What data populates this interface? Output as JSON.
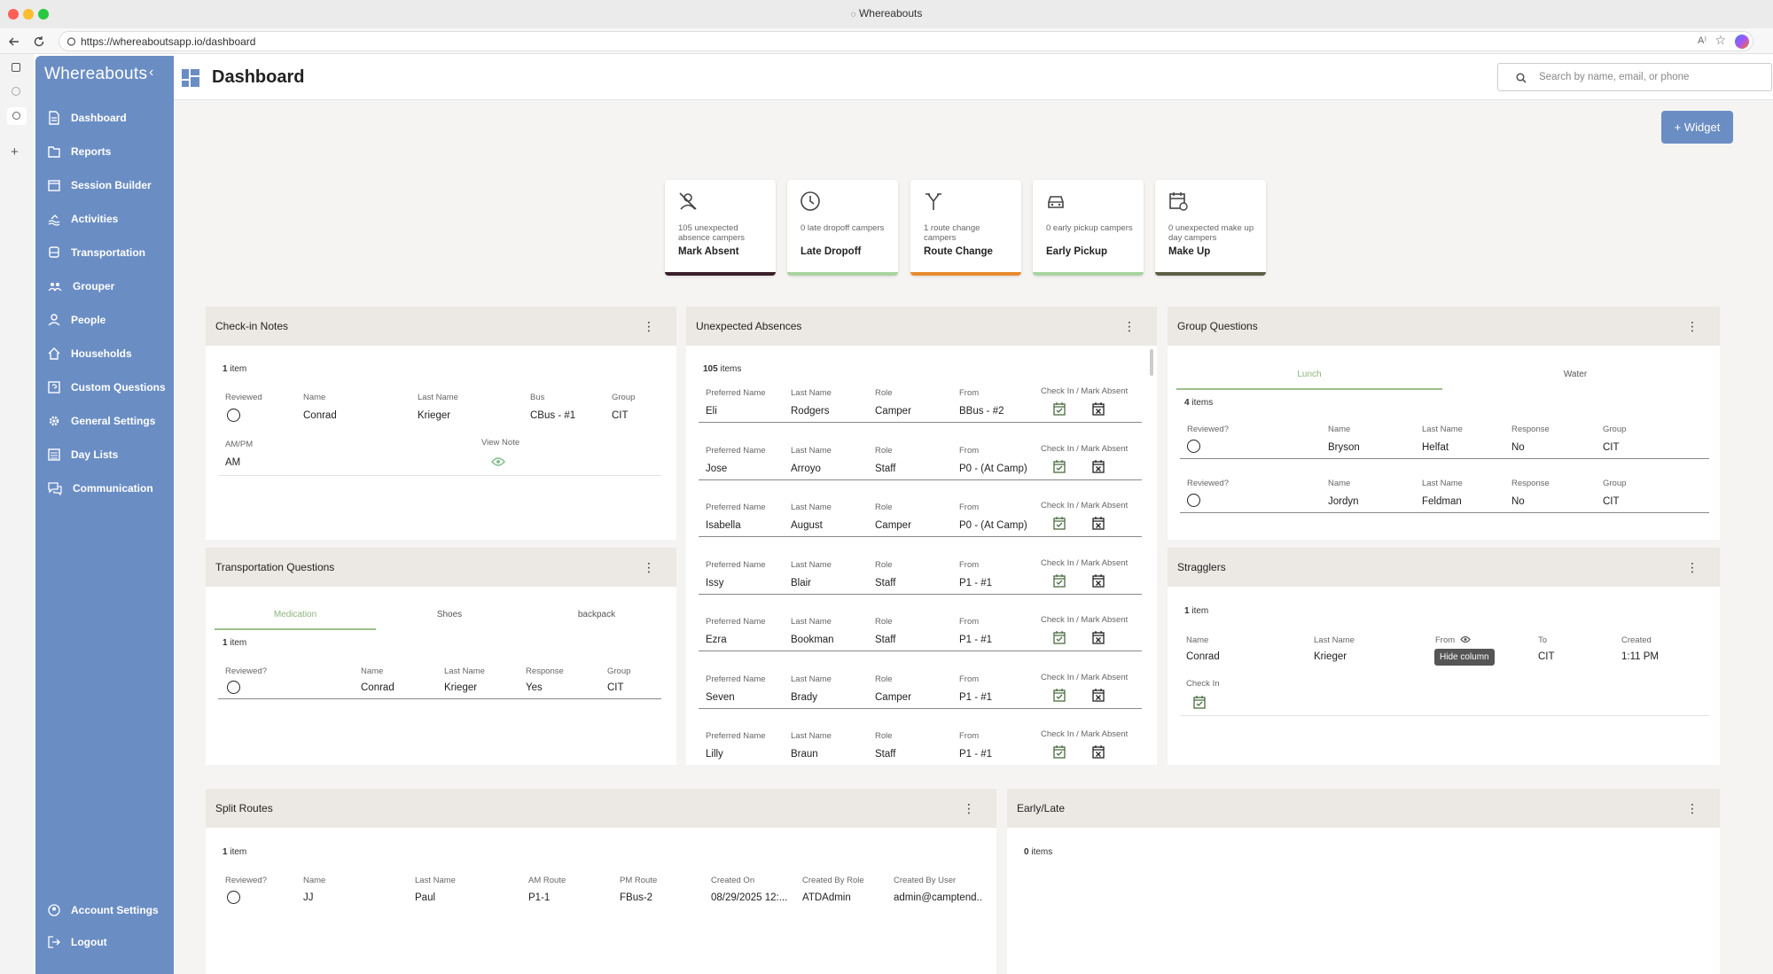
{
  "window": {
    "title": "Whereabouts"
  },
  "browser": {
    "url": "https://whereaboutsapp.io/dashboard"
  },
  "sidebar": {
    "logo": "Whereabouts",
    "items": [
      {
        "label": "Dashboard",
        "icon": "file-icon"
      },
      {
        "label": "Reports",
        "icon": "folder-icon"
      },
      {
        "label": "Session Builder",
        "icon": "calendar-icon"
      },
      {
        "label": "Activities",
        "icon": "swim-icon"
      },
      {
        "label": "Transportation",
        "icon": "bus-icon"
      },
      {
        "label": "Grouper",
        "icon": "group-icon"
      },
      {
        "label": "People",
        "icon": "person-icon"
      },
      {
        "label": "Households",
        "icon": "home-icon"
      },
      {
        "label": "Custom Questions",
        "icon": "question-icon"
      },
      {
        "label": "General Settings",
        "icon": "gear-icon"
      },
      {
        "label": "Day Lists",
        "icon": "list-icon"
      },
      {
        "label": "Communication",
        "icon": "chat-icon"
      }
    ],
    "bottom": [
      {
        "label": "Account Settings",
        "icon": "account-icon"
      },
      {
        "label": "Logout",
        "icon": "logout-icon"
      }
    ]
  },
  "header": {
    "title": "Dashboard",
    "search_placeholder": "Search by name, email, or phone"
  },
  "widget_button": "+ Widget",
  "summary_cards": [
    {
      "desc": "105 unexpected absence campers",
      "label": "Mark Absent",
      "color": "#3a1f2b",
      "icon": "person-off-icon"
    },
    {
      "desc": "0 late dropoff campers",
      "label": "Late Dropoff",
      "color": "#a8d4a0",
      "icon": "clock-icon"
    },
    {
      "desc": "1 route change campers",
      "label": "Route Change",
      "color": "#e88a2e",
      "icon": "fork-icon"
    },
    {
      "desc": "0 early pickup campers",
      "label": "Early Pickup",
      "color": "#a8d4a0",
      "icon": "car-icon"
    },
    {
      "desc": "0 unexpected make up day campers",
      "label": "Make Up",
      "color": "#5c5e44",
      "icon": "calendar-refresh-icon"
    }
  ],
  "checkin_notes": {
    "title": "Check-in Notes",
    "count": "1",
    "count_suffix": "item",
    "headers": [
      "Reviewed",
      "Name",
      "Last Name",
      "Bus",
      "Group"
    ],
    "row": {
      "name": "Conrad",
      "last": "Krieger",
      "bus": "CBus - #1",
      "group": "CIT"
    },
    "headers2": [
      "AM/PM",
      "View Note"
    ],
    "ampm": "AM"
  },
  "unexpected_absences": {
    "title": "Unexpected Absences",
    "count": "105",
    "count_suffix": "items",
    "headers": [
      "Preferred Name",
      "Last Name",
      "Role",
      "From",
      "Check In / Mark Absent"
    ],
    "rows": [
      {
        "pref": "Eli",
        "last": "Rodgers",
        "role": "Camper",
        "from": "BBus - #2"
      },
      {
        "pref": "Jose",
        "last": "Arroyo",
        "role": "Staff",
        "from": "P0 - (At Camp)"
      },
      {
        "pref": "Isabella",
        "last": "August",
        "role": "Camper",
        "from": "P0 - (At Camp)"
      },
      {
        "pref": "Issy",
        "last": "Blair",
        "role": "Staff",
        "from": "P1 - #1"
      },
      {
        "pref": "Ezra",
        "last": "Bookman",
        "role": "Staff",
        "from": "P1 - #1"
      },
      {
        "pref": "Seven",
        "last": "Brady",
        "role": "Camper",
        "from": "P1 - #1"
      },
      {
        "pref": "Lilly",
        "last": "Braun",
        "role": "Staff",
        "from": "P1 - #1"
      }
    ]
  },
  "group_questions": {
    "title": "Group Questions",
    "tabs": [
      "Lunch",
      "Water"
    ],
    "count": "4",
    "count_suffix": "items",
    "headers": [
      "Reviewed?",
      "Name",
      "Last Name",
      "Response",
      "Group"
    ],
    "rows": [
      {
        "name": "Bryson",
        "last": "Helfat",
        "response": "No",
        "group": "CIT"
      },
      {
        "name": "Jordyn",
        "last": "Feldman",
        "response": "No",
        "group": "CIT"
      }
    ]
  },
  "transportation_questions": {
    "title": "Transportation Questions",
    "tabs": [
      "Medication",
      "Shoes",
      "backpack"
    ],
    "count": "1",
    "count_suffix": "item",
    "headers": [
      "Reviewed?",
      "Name",
      "Last Name",
      "Response",
      "Group"
    ],
    "row": {
      "name": "Conrad",
      "last": "Krieger",
      "response": "Yes",
      "group": "CIT"
    }
  },
  "stragglers": {
    "title": "Stragglers",
    "count": "1",
    "count_suffix": "item",
    "headers": [
      "Name",
      "Last Name",
      "From",
      "To",
      "Created"
    ],
    "row": {
      "name": "Conrad",
      "last": "Krieger",
      "to": "CIT",
      "created": "1:11 PM"
    },
    "tooltip": "Hide column",
    "checkin_label": "Check In"
  },
  "split_routes": {
    "title": "Split Routes",
    "count": "1",
    "count_suffix": "item",
    "headers": [
      "Reviewed?",
      "Name",
      "Last Name",
      "AM Route",
      "PM Route",
      "Created On",
      "Created By Role",
      "Created By User"
    ],
    "row": {
      "name": "JJ",
      "last": "Paul",
      "am": "P1-1",
      "pm": "FBus-2",
      "created_on": "08/29/2025 12:...",
      "role": "ATDAdmin",
      "user": "admin@camptend.."
    }
  },
  "early_late": {
    "title": "Early/Late",
    "count": "0",
    "count_suffix": "items"
  }
}
